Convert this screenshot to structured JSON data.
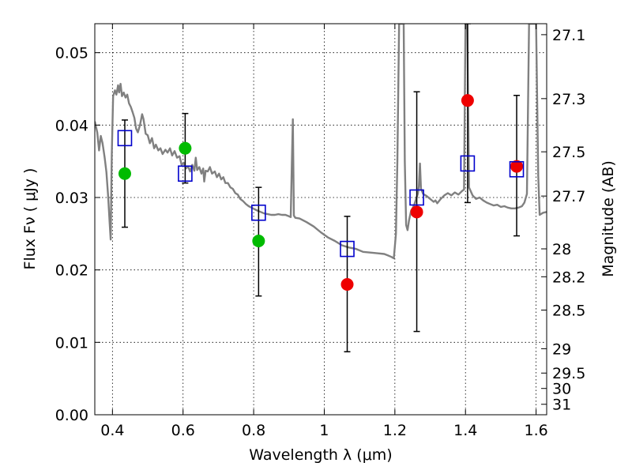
{
  "chart_data": {
    "type": "scatter",
    "xlabel": "Wavelength  λ (μm)",
    "ylabel": "Flux  Fν  ( μJy )",
    "ylabel_right": "Magnitude (AB)",
    "xlim": [
      0.35,
      1.63
    ],
    "ylim": [
      0.0,
      0.054
    ],
    "x_ticks": [
      {
        "value": 0.4,
        "label": "0.4"
      },
      {
        "value": 0.6,
        "label": "0.6"
      },
      {
        "value": 0.8,
        "label": "0.8"
      },
      {
        "value": 1.0,
        "label": "1"
      },
      {
        "value": 1.2,
        "label": "1.2"
      },
      {
        "value": 1.4,
        "label": "1.4"
      },
      {
        "value": 1.6,
        "label": "1.6"
      }
    ],
    "y_ticks": [
      {
        "value": 0.0,
        "label": "0.00"
      },
      {
        "value": 0.01,
        "label": "0.01"
      },
      {
        "value": 0.02,
        "label": "0.02"
      },
      {
        "value": 0.03,
        "label": "0.03"
      },
      {
        "value": 0.04,
        "label": "0.04"
      },
      {
        "value": 0.05,
        "label": "0.05"
      }
    ],
    "mag_ticks": [
      {
        "value": 27.1,
        "label": "27.1"
      },
      {
        "value": 27.3,
        "label": "27.3"
      },
      {
        "value": 27.5,
        "label": "27.5"
      },
      {
        "value": 27.7,
        "label": "27.7"
      },
      {
        "value": 28.0,
        "label": "28"
      },
      {
        "value": 28.2,
        "label": "28.2"
      },
      {
        "value": 28.5,
        "label": "28.5"
      },
      {
        "value": 29.0,
        "label": "29"
      },
      {
        "value": 29.5,
        "label": "29.5"
      },
      {
        "value": 30.0,
        "label": "30"
      },
      {
        "value": 31.0,
        "label": "31"
      }
    ],
    "grid": true,
    "colors": {
      "sed": "#808080",
      "model": "#0000cc",
      "green": "#00bb00",
      "red": "#ee0000",
      "error": "#000000"
    },
    "sed": [
      [
        0.35,
        0.0405
      ],
      [
        0.357,
        0.039
      ],
      [
        0.362,
        0.0365
      ],
      [
        0.367,
        0.0385
      ],
      [
        0.372,
        0.0375
      ],
      [
        0.378,
        0.0355
      ],
      [
        0.383,
        0.0335
      ],
      [
        0.388,
        0.03
      ],
      [
        0.392,
        0.0265
      ],
      [
        0.395,
        0.0242
      ],
      [
        0.398,
        0.036
      ],
      [
        0.402,
        0.044
      ],
      [
        0.407,
        0.0448
      ],
      [
        0.411,
        0.0442
      ],
      [
        0.416,
        0.0455
      ],
      [
        0.419,
        0.0445
      ],
      [
        0.423,
        0.0457
      ],
      [
        0.427,
        0.044
      ],
      [
        0.432,
        0.0445
      ],
      [
        0.437,
        0.0438
      ],
      [
        0.442,
        0.0442
      ],
      [
        0.447,
        0.043
      ],
      [
        0.452,
        0.0425
      ],
      [
        0.457,
        0.0418
      ],
      [
        0.462,
        0.041
      ],
      [
        0.467,
        0.0395
      ],
      [
        0.472,
        0.039
      ],
      [
        0.478,
        0.04
      ],
      [
        0.484,
        0.0415
      ],
      [
        0.488,
        0.0408
      ],
      [
        0.494,
        0.0388
      ],
      [
        0.5,
        0.0386
      ],
      [
        0.506,
        0.0375
      ],
      [
        0.512,
        0.0382
      ],
      [
        0.518,
        0.0368
      ],
      [
        0.523,
        0.0373
      ],
      [
        0.53,
        0.0365
      ],
      [
        0.536,
        0.0368
      ],
      [
        0.542,
        0.036
      ],
      [
        0.55,
        0.0366
      ],
      [
        0.556,
        0.0362
      ],
      [
        0.563,
        0.0368
      ],
      [
        0.569,
        0.0358
      ],
      [
        0.576,
        0.0364
      ],
      [
        0.583,
        0.0355
      ],
      [
        0.59,
        0.0357
      ],
      [
        0.596,
        0.0345
      ],
      [
        0.602,
        0.0348
      ],
      [
        0.608,
        0.034
      ],
      [
        0.614,
        0.0343
      ],
      [
        0.62,
        0.0336
      ],
      [
        0.626,
        0.0345
      ],
      [
        0.632,
        0.0337
      ],
      [
        0.636,
        0.0355
      ],
      [
        0.64,
        0.0338
      ],
      [
        0.646,
        0.0342
      ],
      [
        0.652,
        0.0333
      ],
      [
        0.657,
        0.034
      ],
      [
        0.66,
        0.0322
      ],
      [
        0.664,
        0.0337
      ],
      [
        0.67,
        0.0336
      ],
      [
        0.676,
        0.0342
      ],
      [
        0.682,
        0.0333
      ],
      [
        0.69,
        0.0336
      ],
      [
        0.696,
        0.0328
      ],
      [
        0.702,
        0.0333
      ],
      [
        0.708,
        0.0325
      ],
      [
        0.714,
        0.0328
      ],
      [
        0.72,
        0.032
      ],
      [
        0.727,
        0.032
      ],
      [
        0.734,
        0.0314
      ],
      [
        0.741,
        0.0312
      ],
      [
        0.748,
        0.0306
      ],
      [
        0.755,
        0.0304
      ],
      [
        0.762,
        0.0298
      ],
      [
        0.77,
        0.0295
      ],
      [
        0.778,
        0.0291
      ],
      [
        0.786,
        0.0288
      ],
      [
        0.794,
        0.0286
      ],
      [
        0.802,
        0.0284
      ],
      [
        0.81,
        0.0282
      ],
      [
        0.82,
        0.028
      ],
      [
        0.83,
        0.0278
      ],
      [
        0.84,
        0.0277
      ],
      [
        0.85,
        0.0276
      ],
      [
        0.86,
        0.0276
      ],
      [
        0.87,
        0.0277
      ],
      [
        0.88,
        0.0276
      ],
      [
        0.89,
        0.0276
      ],
      [
        0.9,
        0.0274
      ],
      [
        0.905,
        0.0273
      ],
      [
        0.908,
        0.0345
      ],
      [
        0.911,
        0.0408
      ],
      [
        0.914,
        0.0275
      ],
      [
        0.918,
        0.0272
      ],
      [
        0.93,
        0.0271
      ],
      [
        0.95,
        0.0266
      ],
      [
        0.97,
        0.026
      ],
      [
        0.99,
        0.0252
      ],
      [
        1.01,
        0.0245
      ],
      [
        1.03,
        0.024
      ],
      [
        1.05,
        0.0234
      ],
      [
        1.07,
        0.0231
      ],
      [
        1.09,
        0.0229
      ],
      [
        1.11,
        0.0225
      ],
      [
        1.13,
        0.0224
      ],
      [
        1.15,
        0.0223
      ],
      [
        1.17,
        0.0222
      ],
      [
        1.18,
        0.022
      ],
      [
        1.19,
        0.0218
      ],
      [
        1.197,
        0.0216
      ],
      [
        1.203,
        0.025
      ],
      [
        1.207,
        0.035
      ],
      [
        1.212,
        0.054
      ],
      [
        1.225,
        0.054
      ],
      [
        1.228,
        0.035
      ],
      [
        1.232,
        0.0262
      ],
      [
        1.236,
        0.0255
      ],
      [
        1.24,
        0.0268
      ],
      [
        1.246,
        0.0282
      ],
      [
        1.25,
        0.0285
      ],
      [
        1.255,
        0.029
      ],
      [
        1.26,
        0.0298
      ],
      [
        1.265,
        0.0305
      ],
      [
        1.268,
        0.0315
      ],
      [
        1.271,
        0.0347
      ],
      [
        1.274,
        0.0312
      ],
      [
        1.28,
        0.0305
      ],
      [
        1.29,
        0.0302
      ],
      [
        1.3,
        0.0298
      ],
      [
        1.31,
        0.0294
      ],
      [
        1.315,
        0.0296
      ],
      [
        1.32,
        0.0292
      ],
      [
        1.33,
        0.0298
      ],
      [
        1.34,
        0.0303
      ],
      [
        1.35,
        0.0306
      ],
      [
        1.36,
        0.0303
      ],
      [
        1.37,
        0.0307
      ],
      [
        1.38,
        0.0304
      ],
      [
        1.39,
        0.0309
      ],
      [
        1.396,
        0.0311
      ],
      [
        1.4,
        0.054
      ],
      [
        1.405,
        0.054
      ],
      [
        1.41,
        0.0314
      ],
      [
        1.42,
        0.0303
      ],
      [
        1.43,
        0.0298
      ],
      [
        1.44,
        0.03
      ],
      [
        1.45,
        0.0296
      ],
      [
        1.46,
        0.0293
      ],
      [
        1.47,
        0.0291
      ],
      [
        1.48,
        0.0289
      ],
      [
        1.49,
        0.029
      ],
      [
        1.5,
        0.0287
      ],
      [
        1.51,
        0.0288
      ],
      [
        1.52,
        0.0286
      ],
      [
        1.53,
        0.0285
      ],
      [
        1.54,
        0.0285
      ],
      [
        1.55,
        0.0286
      ],
      [
        1.56,
        0.0288
      ],
      [
        1.567,
        0.0293
      ],
      [
        1.574,
        0.0305
      ],
      [
        1.58,
        0.054
      ],
      [
        1.6,
        0.054
      ],
      [
        1.606,
        0.033
      ],
      [
        1.61,
        0.0276
      ],
      [
        1.62,
        0.0279
      ],
      [
        1.63,
        0.028
      ]
    ],
    "model_points": [
      {
        "x": 0.435,
        "y": 0.0382
      },
      {
        "x": 0.606,
        "y": 0.0333
      },
      {
        "x": 0.814,
        "y": 0.0279
      },
      {
        "x": 1.065,
        "y": 0.0229
      },
      {
        "x": 1.262,
        "y": 0.03
      },
      {
        "x": 1.406,
        "y": 0.0347
      },
      {
        "x": 1.545,
        "y": 0.0339
      }
    ],
    "observations": [
      {
        "x": 0.435,
        "y": 0.0333,
        "err_low": 0.0259,
        "err_high": 0.0407,
        "color": "green"
      },
      {
        "x": 0.606,
        "y": 0.0368,
        "err_low": 0.032,
        "err_high": 0.0416,
        "color": "green"
      },
      {
        "x": 0.814,
        "y": 0.024,
        "err_low": 0.0164,
        "err_high": 0.0314,
        "color": "green"
      },
      {
        "x": 1.065,
        "y": 0.018,
        "err_low": 0.0087,
        "err_high": 0.0274,
        "color": "red"
      },
      {
        "x": 1.262,
        "y": 0.028,
        "err_low": 0.0115,
        "err_high": 0.0446,
        "color": "red"
      },
      {
        "x": 1.406,
        "y": 0.0434,
        "err_low": 0.0293,
        "err_high": 0.054,
        "color": "red"
      },
      {
        "x": 1.545,
        "y": 0.0343,
        "err_low": 0.0247,
        "err_high": 0.0441,
        "color": "red"
      }
    ]
  }
}
